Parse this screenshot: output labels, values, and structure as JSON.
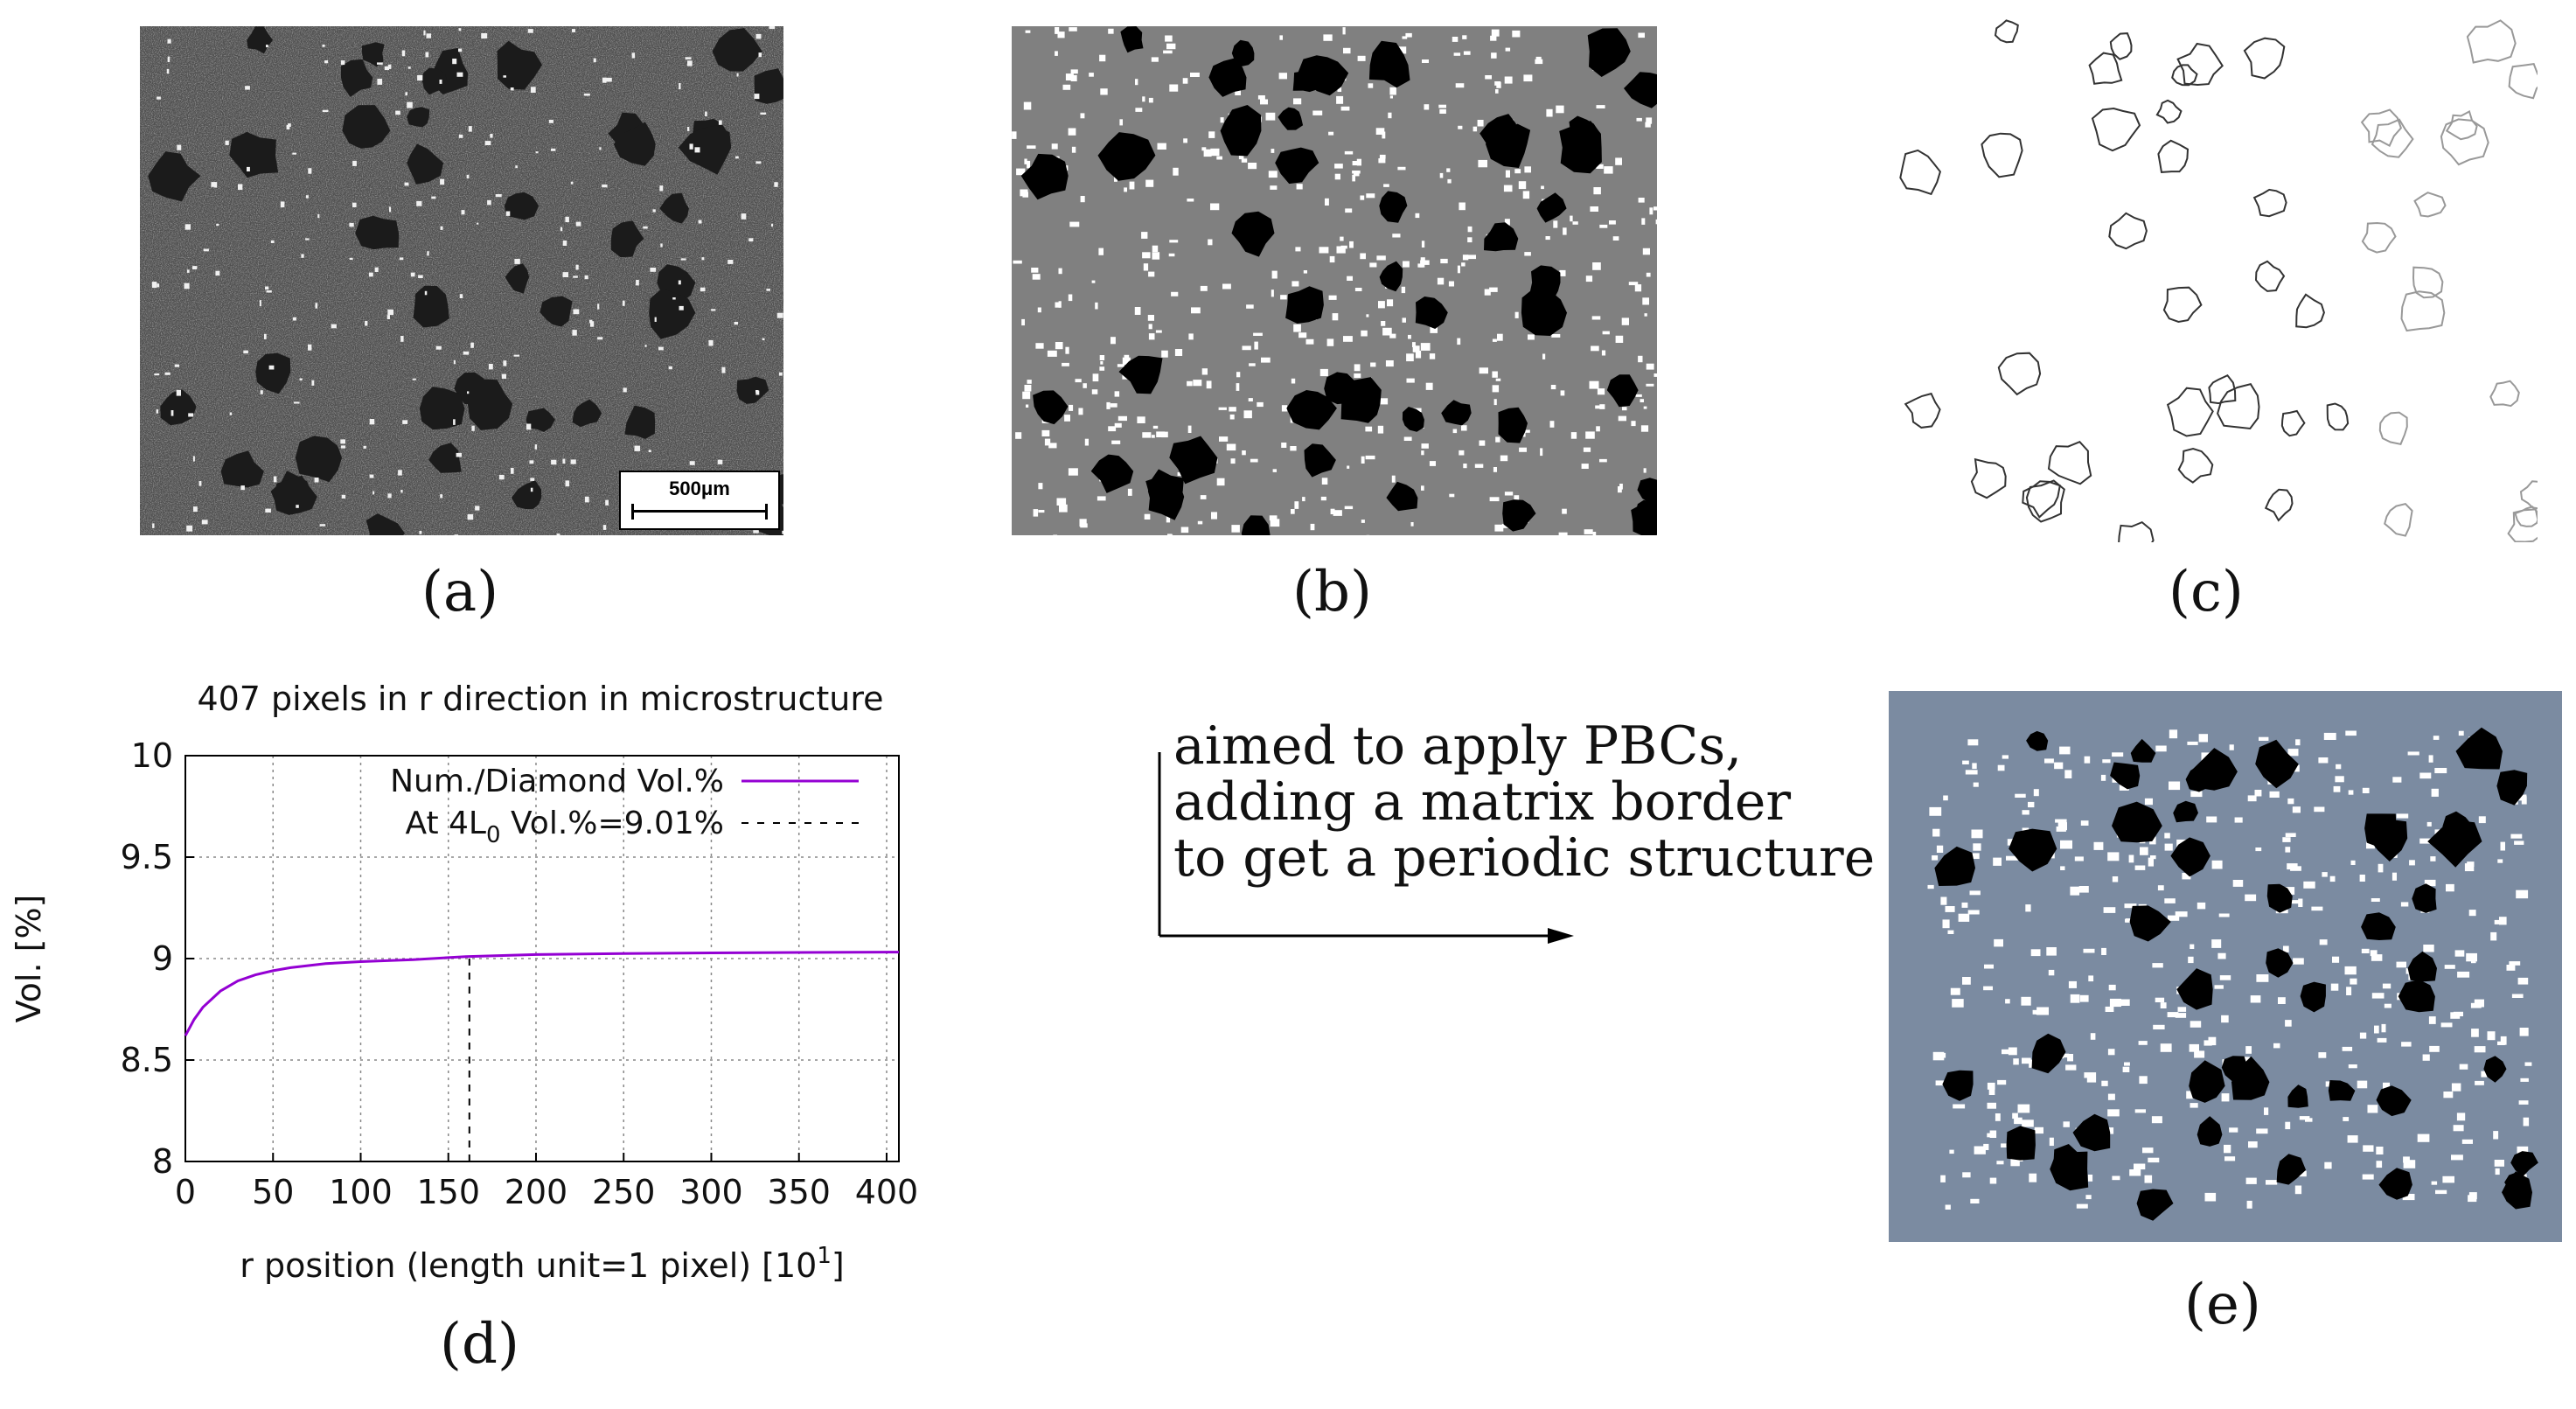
{
  "panels": {
    "a": {
      "caption": "(a)",
      "scalebar_label": "500μm"
    },
    "b": {
      "caption": "(b)"
    },
    "c": {
      "caption": "(c)"
    },
    "d": {
      "caption": "(d)"
    },
    "e": {
      "caption": "(e)"
    }
  },
  "note": {
    "lines": [
      "aimed to apply PBCs,",
      "adding a matrix border",
      "to get a periodic structure"
    ]
  },
  "colors": {
    "panel_b_matrix": "#808080",
    "panel_e_matrix": "#7b8ba1",
    "curve": "#9400d3"
  },
  "chart_data": {
    "type": "line",
    "title": "407 pixels in r direction in microstructure",
    "xlabel": "r position (length unit=1 pixel) [10",
    "xlabel_sup": "1",
    "xlabel_end": "]",
    "ylabel": "Vol. [%]",
    "xlim": [
      0,
      407
    ],
    "ylim": [
      8,
      10
    ],
    "xticks": [
      0,
      50,
      100,
      150,
      200,
      250,
      300,
      350,
      400
    ],
    "yticks": [
      8,
      8.5,
      9,
      9.5,
      10
    ],
    "grid": true,
    "legend_position": "top-right",
    "series": [
      {
        "name": "Num./Diamond Vol.%",
        "style": "solid",
        "x": [
          0,
          5,
          10,
          20,
          30,
          40,
          50,
          60,
          80,
          100,
          130,
          160,
          200,
          250,
          300,
          350,
          407
        ],
        "y": [
          8.62,
          8.7,
          8.76,
          8.84,
          8.89,
          8.92,
          8.94,
          8.955,
          8.975,
          8.985,
          8.995,
          9.01,
          9.02,
          9.025,
          9.028,
          9.03,
          9.032
        ]
      },
      {
        "name_prefix": "At 4L",
        "name_sub": "0",
        "name_suffix": " Vol.%=9.01%",
        "style": "dashed",
        "x": [
          162,
          162
        ],
        "y": [
          8,
          9.01
        ]
      }
    ]
  }
}
